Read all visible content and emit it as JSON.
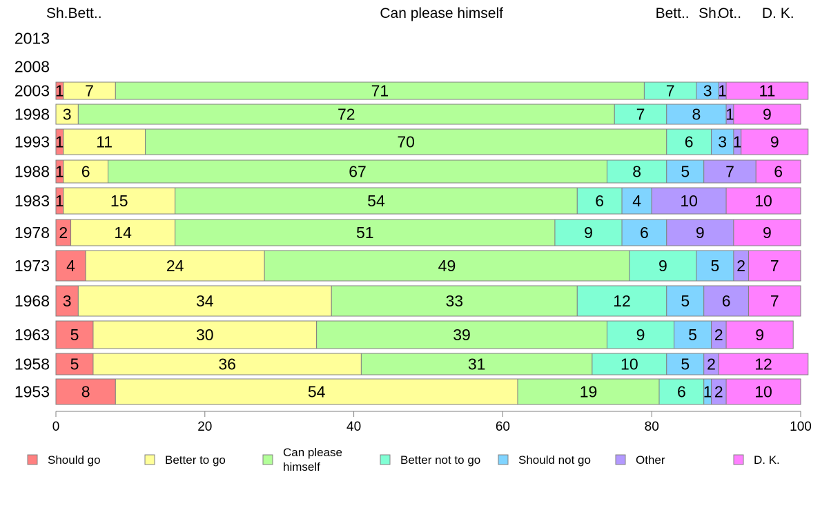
{
  "chart_data": {
    "type": "bar",
    "orientation": "horizontal",
    "stacked": true,
    "top_labels": [
      {
        "text": "Sh.Bett..",
        "at": 0
      },
      {
        "text": "Can please himself",
        "at": 43.5
      },
      {
        "text": "Bett..",
        "at": 80.5
      },
      {
        "text": "Sh.",
        "at": 86.3
      },
      {
        "text": "Ot..",
        "at": 88.9
      },
      {
        "text": "D. K.",
        "at": 94.8
      }
    ],
    "categories": [
      "2013",
      "2008",
      "2003",
      "1998",
      "1993",
      "1988",
      "1983",
      "1978",
      "1973",
      "1968",
      "1963",
      "1958",
      "1953"
    ],
    "series": [
      {
        "name": "Should go",
        "color": "#ff8080",
        "values": [
          null,
          null,
          1,
          0,
          1,
          1,
          1,
          2,
          4,
          3,
          5,
          5,
          8
        ]
      },
      {
        "name": "Better to go",
        "color": "#ffff99",
        "values": [
          null,
          null,
          7,
          3,
          11,
          6,
          15,
          14,
          24,
          34,
          30,
          36,
          54
        ]
      },
      {
        "name": "Can please himself",
        "color": "#b3ff99",
        "values": [
          null,
          null,
          71,
          72,
          70,
          67,
          54,
          51,
          49,
          33,
          39,
          31,
          19
        ]
      },
      {
        "name": "Better not to go",
        "color": "#80ffd4",
        "values": [
          null,
          null,
          7,
          7,
          6,
          8,
          6,
          9,
          9,
          12,
          9,
          10,
          6
        ]
      },
      {
        "name": "Should not go",
        "color": "#80d4ff",
        "values": [
          null,
          null,
          3,
          8,
          3,
          5,
          4,
          6,
          5,
          5,
          5,
          5,
          1
        ]
      },
      {
        "name": "Other",
        "color": "#b399ff",
        "values": [
          null,
          null,
          1,
          1,
          1,
          7,
          10,
          9,
          2,
          6,
          2,
          2,
          2
        ]
      },
      {
        "name": "D. K.",
        "color": "#ff80ff",
        "values": [
          null,
          null,
          11,
          9,
          9,
          6,
          10,
          9,
          7,
          7,
          9,
          12,
          10
        ]
      }
    ],
    "legend": {
      "position": "bottom",
      "items": [
        {
          "label": "Should go",
          "color": "#ff8080"
        },
        {
          "label": "Better to go",
          "color": "#ffff99"
        },
        {
          "label": "Can please himself",
          "lines": [
            "Can please",
            "himself"
          ],
          "color": "#b3ff99"
        },
        {
          "label": "Better not to go",
          "color": "#80ffd4"
        },
        {
          "label": "Should not go",
          "color": "#80d4ff"
        },
        {
          "label": "Other",
          "color": "#b399ff"
        },
        {
          "label": "D. K.",
          "color": "#ff80ff"
        }
      ]
    },
    "xlim": [
      0,
      100
    ],
    "xticks": [
      0,
      20,
      40,
      60,
      80,
      100
    ],
    "grid": false,
    "title": "",
    "xlabel": "",
    "ylabel": ""
  }
}
